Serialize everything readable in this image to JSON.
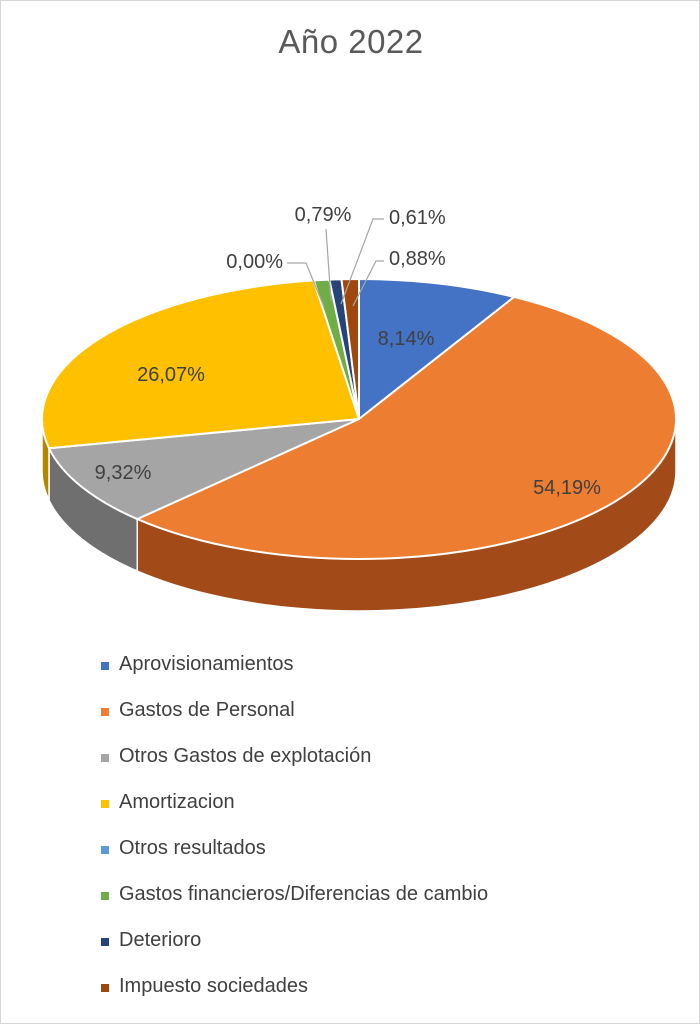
{
  "chart_data": {
    "type": "pie",
    "title": "Año 2022",
    "legend_position": "bottom",
    "slices": [
      {
        "name": "Aprovisionamientos",
        "value": 8.14,
        "label": "8,14%",
        "color": "#4472C4",
        "side": "#2F5597"
      },
      {
        "name": "Gastos de Personal",
        "value": 54.19,
        "label": "54,19%",
        "color": "#ED7D31",
        "side": "#A24A18"
      },
      {
        "name": "Otros Gastos de explotación",
        "value": 9.32,
        "label": "9,32%",
        "color": "#A5A5A5",
        "side": "#6F6F6F"
      },
      {
        "name": "Amortizacion",
        "value": 26.07,
        "label": "26,07%",
        "color": "#FFC000",
        "side": "#B38600"
      },
      {
        "name": "Otros resultados",
        "value": 0.0,
        "label": "0,00%",
        "color": "#5B9BD5",
        "side": "#3C6E9B"
      },
      {
        "name": "Gastos financieros/Diferencias de cambio",
        "value": 0.79,
        "label": "0,79%",
        "color": "#70AD47",
        "side": "#4E7A31"
      },
      {
        "name": "Deterioro",
        "value": 0.61,
        "label": "0,61%",
        "color": "#264478",
        "side": "#172A4B"
      },
      {
        "name": "Impuesto sociedades",
        "value": 0.88,
        "label": "0,88%",
        "color": "#9E480E",
        "side": "#6A2F08"
      }
    ]
  }
}
